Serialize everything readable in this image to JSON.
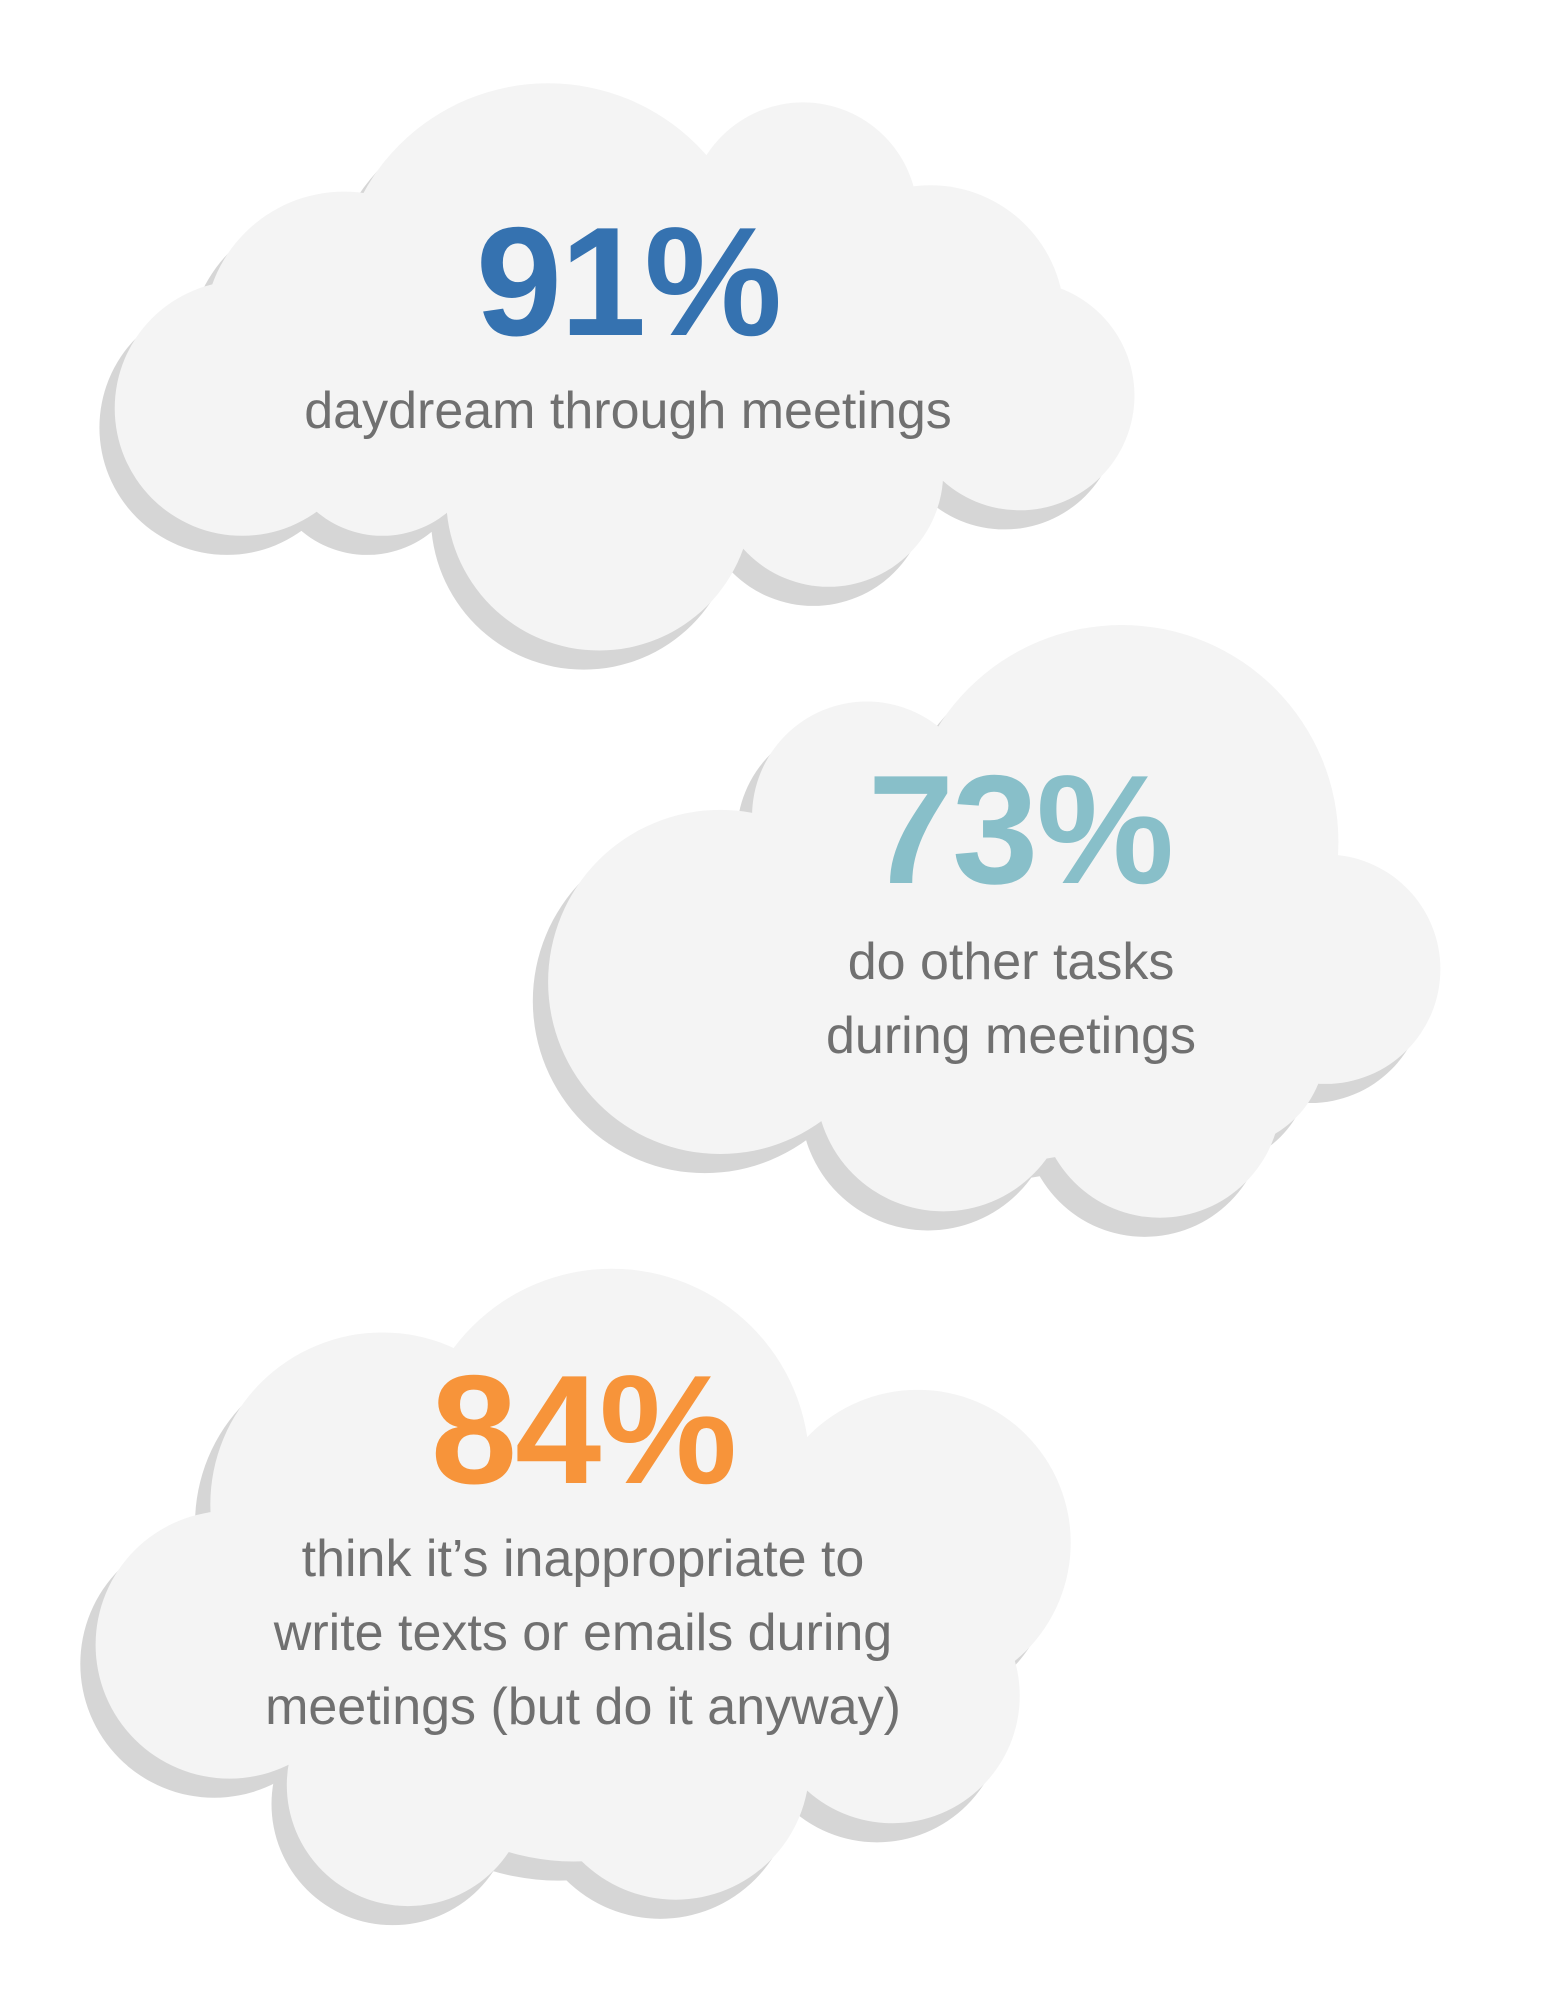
{
  "colors": {
    "cloud": "#f4f4f4",
    "shadow": "#d6d6d6",
    "text": "#707070"
  },
  "stats": [
    {
      "value": "91%",
      "color": "#3572b0",
      "lines": [
        "daydream through meetings"
      ]
    },
    {
      "value": "73%",
      "color": "#88bfc9",
      "lines": [
        "do other tasks",
        "during meetings"
      ]
    },
    {
      "value": "84%",
      "color": "#f7943a",
      "lines": [
        "think it’s inappropriate to",
        "write texts or emails during",
        "meetings (but do it anyway)"
      ]
    }
  ]
}
